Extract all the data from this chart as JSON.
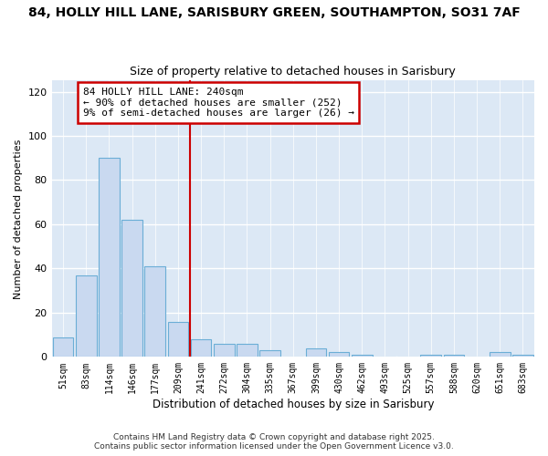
{
  "title1": "84, HOLLY HILL LANE, SARISBURY GREEN, SOUTHAMPTON, SO31 7AF",
  "title2": "Size of property relative to detached houses in Sarisbury",
  "xlabel": "Distribution of detached houses by size in Sarisbury",
  "ylabel": "Number of detached properties",
  "bar_labels": [
    "51sqm",
    "83sqm",
    "114sqm",
    "146sqm",
    "177sqm",
    "209sqm",
    "241sqm",
    "272sqm",
    "304sqm",
    "335sqm",
    "367sqm",
    "399sqm",
    "430sqm",
    "462sqm",
    "493sqm",
    "525sqm",
    "557sqm",
    "588sqm",
    "620sqm",
    "651sqm",
    "683sqm"
  ],
  "bar_values": [
    9,
    37,
    90,
    62,
    41,
    16,
    8,
    6,
    6,
    3,
    0,
    4,
    2,
    1,
    0,
    0,
    1,
    1,
    0,
    2,
    1
  ],
  "bar_color": "#c9d9f0",
  "bar_edge_color": "#6baed6",
  "vline_color": "#cc0000",
  "annotation_title": "84 HOLLY HILL LANE: 240sqm",
  "annotation_line1": "← 90% of detached houses are smaller (252)",
  "annotation_line2": "9% of semi-detached houses are larger (26) →",
  "annotation_box_color": "#ffffff",
  "annotation_border_color": "#cc0000",
  "ylim": [
    0,
    125
  ],
  "yticks": [
    0,
    20,
    40,
    60,
    80,
    100,
    120
  ],
  "fig_bg_color": "#ffffff",
  "plot_bg_color": "#dce8f5",
  "grid_color": "#ffffff",
  "footer1": "Contains HM Land Registry data © Crown copyright and database right 2025.",
  "footer2": "Contains public sector information licensed under the Open Government Licence v3.0."
}
